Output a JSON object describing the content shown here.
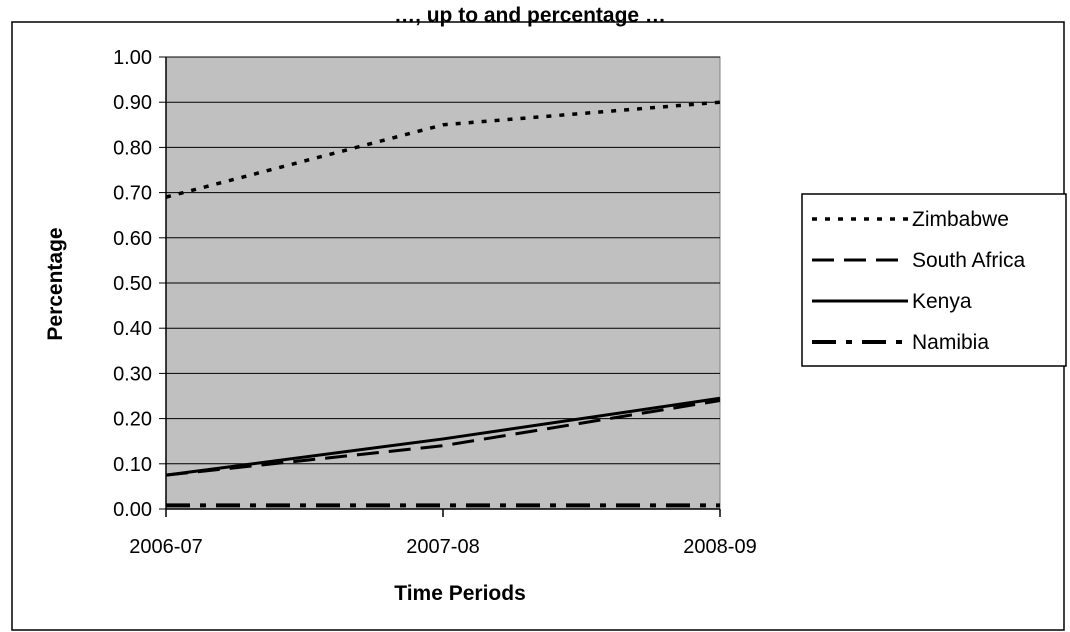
{
  "chart_title": "…, up to and percentage …",
  "chart_data": {
    "type": "line",
    "title": "…, up to and percentage …",
    "xlabel": "Time Periods",
    "ylabel": "Percentage",
    "categories": [
      "2006-07",
      "2007-08",
      "2008-09"
    ],
    "ylim": [
      0,
      1
    ],
    "ytick_labels": [
      "0.00",
      "0.10",
      "0.20",
      "0.30",
      "0.40",
      "0.50",
      "0.60",
      "0.70",
      "0.80",
      "0.90",
      "1.00"
    ],
    "grid": true,
    "legend_position": "right",
    "series": [
      {
        "name": "Zimbabwe",
        "values": [
          0.69,
          0.85,
          0.9
        ],
        "style": "dotted"
      },
      {
        "name": "South Africa",
        "values": [
          0.075,
          0.14,
          0.24
        ],
        "style": "long-dash"
      },
      {
        "name": "Kenya",
        "values": [
          0.075,
          0.155,
          0.245
        ],
        "style": "solid"
      },
      {
        "name": "Namibia",
        "values": [
          0.008,
          0.008,
          0.008
        ],
        "style": "dash-dot"
      }
    ],
    "colors": {
      "plot_background": "#c0c0c0",
      "line": "#000000"
    }
  }
}
